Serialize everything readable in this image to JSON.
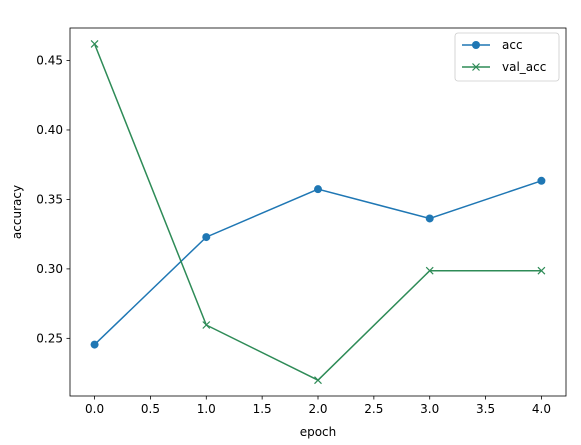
{
  "chart_data": {
    "type": "line",
    "title": "",
    "xlabel": "epoch",
    "ylabel": "accuracy",
    "xlim": [
      -0.22,
      4.22
    ],
    "ylim": [
      0.2085,
      0.4734
    ],
    "x_ticks": [
      "0.0",
      "0.5",
      "1.0",
      "1.5",
      "2.0",
      "2.5",
      "3.0",
      "3.5",
      "4.0"
    ],
    "y_ticks": [
      "0.25",
      "0.30",
      "0.35",
      "0.40",
      "0.45"
    ],
    "grid": false,
    "legend_position": "top-right",
    "x": [
      0,
      1,
      2,
      3,
      4
    ],
    "series": [
      {
        "name": "acc",
        "values": [
          0.2455,
          0.3229,
          0.3574,
          0.3363,
          0.3634
        ],
        "color": "#1f77b4",
        "marker": "circle"
      },
      {
        "name": "val_acc",
        "values": [
          0.4619,
          0.2596,
          0.2199,
          0.2987,
          0.2987
        ],
        "color": "#2e8b57",
        "marker": "x"
      }
    ]
  }
}
